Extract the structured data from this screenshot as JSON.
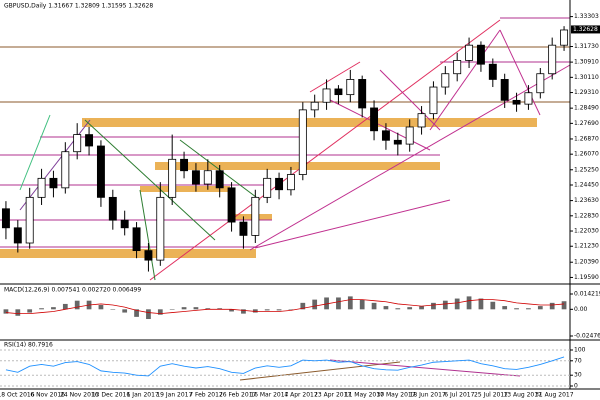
{
  "chart_data": [
    {
      "type": "candlestick",
      "title": "GBPUSD,Daily  1.31667 1.32809 1.31595 1.32628",
      "open": [
        1.232,
        1.222,
        1.214,
        1.238,
        1.248,
        1.243,
        1.262,
        1.271,
        1.265,
        1.238,
        1.226,
        1.222,
        1.21,
        1.205,
        1.238,
        1.258,
        1.252,
        1.245,
        1.252,
        1.243,
        1.225,
        1.218,
        1.238,
        1.248,
        1.242,
        1.25,
        1.284,
        1.288,
        1.295,
        1.292,
        1.3,
        1.285,
        1.273,
        1.268,
        1.266,
        1.275,
        1.282,
        1.296,
        1.303,
        1.31,
        1.318,
        1.308,
        1.3,
        1.289,
        1.287,
        1.293,
        1.303,
        1.318
      ],
      "high": [
        1.236,
        1.226,
        1.243,
        1.253,
        1.252,
        1.267,
        1.277,
        1.275,
        1.268,
        1.242,
        1.231,
        1.225,
        1.214,
        1.246,
        1.271,
        1.262,
        1.256,
        1.258,
        1.255,
        1.246,
        1.228,
        1.242,
        1.253,
        1.251,
        1.254,
        1.288,
        1.292,
        1.3,
        1.297,
        1.305,
        1.302,
        1.289,
        1.277,
        1.272,
        1.279,
        1.286,
        1.299,
        1.307,
        1.314,
        1.322,
        1.32,
        1.311,
        1.303,
        1.293,
        1.297,
        1.306,
        1.322,
        1.328
      ],
      "low": [
        1.216,
        1.209,
        1.211,
        1.234,
        1.238,
        1.24,
        1.258,
        1.26,
        1.233,
        1.221,
        1.218,
        1.206,
        1.199,
        1.202,
        1.234,
        1.248,
        1.241,
        1.242,
        1.238,
        1.22,
        1.211,
        1.214,
        1.235,
        1.237,
        1.239,
        1.247,
        1.28,
        1.284,
        1.287,
        1.288,
        1.28,
        1.268,
        1.263,
        1.26,
        1.262,
        1.271,
        1.279,
        1.292,
        1.299,
        1.306,
        1.304,
        1.296,
        1.285,
        1.283,
        1.284,
        1.29,
        1.3,
        1.315
      ],
      "close": [
        1.222,
        1.214,
        1.238,
        1.248,
        1.243,
        1.262,
        1.271,
        1.265,
        1.238,
        1.226,
        1.222,
        1.21,
        1.205,
        1.238,
        1.258,
        1.252,
        1.245,
        1.252,
        1.243,
        1.225,
        1.218,
        1.238,
        1.248,
        1.242,
        1.25,
        1.284,
        1.288,
        1.295,
        1.292,
        1.3,
        1.285,
        1.273,
        1.268,
        1.266,
        1.275,
        1.282,
        1.296,
        1.303,
        1.31,
        1.318,
        1.308,
        1.3,
        1.289,
        1.287,
        1.293,
        1.303,
        1.318,
        1.326
      ],
      "ylim": [
        1.1935,
        1.3365
      ],
      "yticks": [
        {
          "value": 1.33303,
          "label": "1.33303"
        },
        {
          "value": 1.3173,
          "label": "1.31730"
        },
        {
          "value": 1.3091,
          "label": "1.30910"
        },
        {
          "value": 1.3011,
          "label": "1.30110"
        },
        {
          "value": 1.2931,
          "label": "1.29310"
        },
        {
          "value": 1.2849,
          "label": "1.28490"
        },
        {
          "value": 1.2769,
          "label": "1.27690"
        },
        {
          "value": 1.2687,
          "label": "1.26870"
        },
        {
          "value": 1.2607,
          "label": "1.26070"
        },
        {
          "value": 1.2525,
          "label": "1.25250"
        },
        {
          "value": 1.2445,
          "label": "1.24450"
        },
        {
          "value": 1.2363,
          "label": "1.23630"
        },
        {
          "value": 1.2283,
          "label": "1.22830"
        },
        {
          "value": 1.2203,
          "label": "1.22030"
        },
        {
          "value": 1.2123,
          "label": "1.21230"
        },
        {
          "value": 1.2039,
          "label": "1.20390"
        },
        {
          "value": 1.1959,
          "label": "1.19590"
        }
      ],
      "last_price": {
        "value": 1.32628,
        "label": "1.32628"
      },
      "x_labels": [
        "18 Oct 2016",
        "6 Nov 2016",
        "24 Nov 2016",
        "13 Dec 2016",
        "1 Jan 2017",
        "19 Jan 2017",
        "7 Feb 2017",
        "26 Feb 2017",
        "16 Mar 2017",
        "4 Apr 2017",
        "23 Apr 2017",
        "11 May 2017",
        "30 May 2017",
        "18 Jun 2017",
        "6 Jul 2017",
        "25 Jul 2017",
        "13 Aug 2017",
        "31 Aug 2017"
      ],
      "up_color": "#ffffff",
      "down_color": "#000000"
    },
    {
      "type": "bar",
      "title": "MACD(12,26,9) 0.007541 0.002720 0.006499",
      "values": [
        -0.004,
        -0.006,
        -0.003,
        0.001,
        0.002,
        0.005,
        0.008,
        0.008,
        0.004,
        0.0,
        -0.003,
        -0.007,
        -0.009,
        -0.005,
        0.0,
        0.002,
        0.002,
        0.001,
        0.001,
        -0.002,
        -0.004,
        -0.003,
        -0.001,
        -0.001,
        0.0,
        0.006,
        0.009,
        0.011,
        0.011,
        0.012,
        0.009,
        0.006,
        0.003,
        0.001,
        0.002,
        0.003,
        0.006,
        0.008,
        0.01,
        0.012,
        0.01,
        0.007,
        0.003,
        0.001,
        0.001,
        0.003,
        0.006,
        0.0075
      ],
      "signal": [
        -0.003,
        -0.004,
        -0.004,
        -0.003,
        -0.002,
        0.0,
        0.002,
        0.004,
        0.005,
        0.004,
        0.002,
        -0.001,
        -0.003,
        -0.004,
        -0.003,
        -0.002,
        -0.001,
        0.0,
        0.0,
        0.0,
        -0.001,
        -0.002,
        -0.002,
        -0.002,
        -0.001,
        0.001,
        0.003,
        0.005,
        0.007,
        0.009,
        0.009,
        0.008,
        0.007,
        0.005,
        0.004,
        0.003,
        0.004,
        0.005,
        0.006,
        0.008,
        0.009,
        0.009,
        0.008,
        0.006,
        0.005,
        0.004,
        0.004,
        0.005
      ],
      "color": "#666666",
      "signal_color": "#d00000",
      "ylim": [
        -0.024767,
        0.014219
      ],
      "yticks": [
        0.014219,
        {
          "value": 0,
          "label": "0.00"
        },
        -0.024767
      ]
    },
    {
      "type": "line",
      "title": "RSI(14) 80.7916",
      "values": [
        45,
        38,
        55,
        60,
        55,
        65,
        68,
        60,
        42,
        38,
        36,
        30,
        28,
        55,
        62,
        55,
        50,
        54,
        48,
        38,
        35,
        50,
        56,
        52,
        56,
        72,
        70,
        72,
        66,
        68,
        56,
        48,
        45,
        44,
        52,
        58,
        66,
        68,
        70,
        72,
        62,
        56,
        48,
        46,
        52,
        60,
        70,
        80.79
      ],
      "color": "#1e90ff",
      "ylim": [
        0,
        100
      ],
      "yticks": [
        100,
        70,
        30,
        0
      ]
    }
  ]
}
